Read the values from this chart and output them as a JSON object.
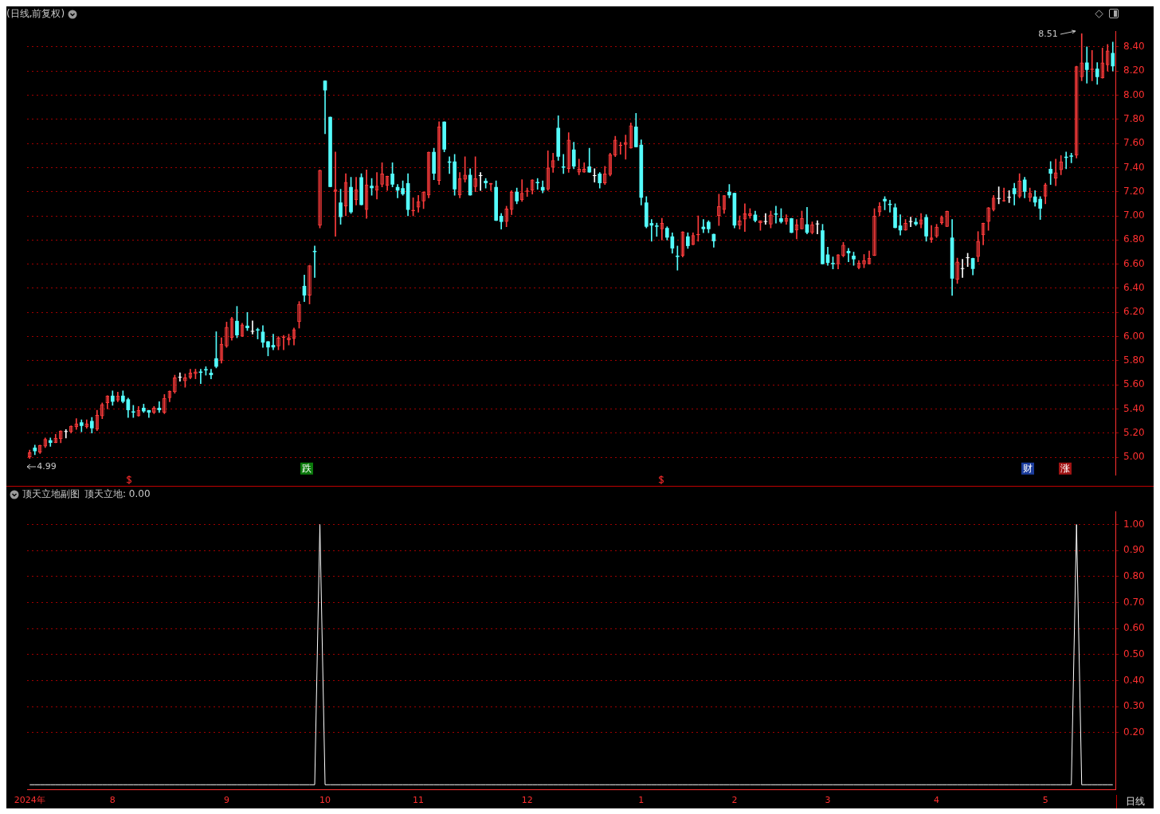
{
  "chart_data": [
    {
      "type": "candlestick",
      "title": "(日线,前复权)",
      "ohlc": [
        [
          5.0,
          5.06,
          4.99,
          5.04
        ],
        [
          5.08,
          5.1,
          5.02,
          5.05
        ],
        [
          5.04,
          5.1,
          5.03,
          5.1
        ],
        [
          5.09,
          5.16,
          5.08,
          5.15
        ],
        [
          5.14,
          5.16,
          5.09,
          5.12
        ],
        [
          5.12,
          5.19,
          5.12,
          5.16
        ],
        [
          5.15,
          5.22,
          5.12,
          5.22
        ],
        [
          5.21,
          5.23,
          5.16,
          5.21
        ],
        [
          5.21,
          5.26,
          5.2,
          5.26
        ],
        [
          5.25,
          5.32,
          5.23,
          5.28
        ],
        [
          5.29,
          5.31,
          5.21,
          5.26
        ],
        [
          5.25,
          5.31,
          5.24,
          5.28
        ],
        [
          5.3,
          5.33,
          5.2,
          5.24
        ],
        [
          5.23,
          5.39,
          5.22,
          5.35
        ],
        [
          5.34,
          5.45,
          5.32,
          5.44
        ],
        [
          5.45,
          5.51,
          5.4,
          5.51
        ],
        [
          5.51,
          5.55,
          5.43,
          5.46
        ],
        [
          5.47,
          5.54,
          5.46,
          5.51
        ],
        [
          5.51,
          5.55,
          5.45,
          5.46
        ],
        [
          5.48,
          5.49,
          5.33,
          5.39
        ],
        [
          5.38,
          5.43,
          5.33,
          5.37
        ],
        [
          5.34,
          5.42,
          5.34,
          5.39
        ],
        [
          5.41,
          5.44,
          5.37,
          5.38
        ],
        [
          5.39,
          5.39,
          5.33,
          5.37
        ],
        [
          5.37,
          5.42,
          5.36,
          5.41
        ],
        [
          5.41,
          5.46,
          5.37,
          5.39
        ],
        [
          5.37,
          5.52,
          5.36,
          5.49
        ],
        [
          5.49,
          5.55,
          5.46,
          5.55
        ],
        [
          5.54,
          5.68,
          5.53,
          5.66
        ],
        [
          5.66,
          5.7,
          5.63,
          5.66
        ],
        [
          5.63,
          5.69,
          5.58,
          5.66
        ],
        [
          5.66,
          5.73,
          5.65,
          5.7
        ],
        [
          5.69,
          5.73,
          5.65,
          5.71
        ],
        [
          5.71,
          5.73,
          5.61,
          5.7
        ],
        [
          5.73,
          5.75,
          5.68,
          5.72
        ],
        [
          5.7,
          5.73,
          5.65,
          5.68
        ],
        [
          5.82,
          6.04,
          5.74,
          5.75
        ],
        [
          5.8,
          5.99,
          5.78,
          5.94
        ],
        [
          5.92,
          6.12,
          5.91,
          6.08
        ],
        [
          5.99,
          6.16,
          5.97,
          6.15
        ],
        [
          6.13,
          6.25,
          5.99,
          6.01
        ],
        [
          6.0,
          6.11,
          6.0,
          6.1
        ],
        [
          6.09,
          6.2,
          6.05,
          6.07
        ],
        [
          6.04,
          6.13,
          6.02,
          6.04
        ],
        [
          6.06,
          6.07,
          5.98,
          6.05
        ],
        [
          6.04,
          6.09,
          5.91,
          5.95
        ],
        [
          5.96,
          5.96,
          5.84,
          5.91
        ],
        [
          5.93,
          6.02,
          5.89,
          5.91
        ],
        [
          5.92,
          6.0,
          5.89,
          5.99
        ],
        [
          5.99,
          6.01,
          5.89,
          6.0
        ],
        [
          5.97,
          6.02,
          5.93,
          5.99
        ],
        [
          5.98,
          6.07,
          5.93,
          6.06
        ],
        [
          6.12,
          6.29,
          6.07,
          6.27
        ],
        [
          6.42,
          6.51,
          6.29,
          6.34
        ],
        [
          6.34,
          6.59,
          6.27,
          6.59
        ],
        [
          6.71,
          6.75,
          6.49,
          6.7
        ],
        [
          6.92,
          7.38,
          6.9,
          7.38
        ],
        [
          8.12,
          8.12,
          7.68,
          8.04
        ],
        [
          7.82,
          7.82,
          7.24,
          7.24
        ],
        [
          7.2,
          7.53,
          6.83,
          7.22
        ],
        [
          7.11,
          7.22,
          6.93,
          6.99
        ],
        [
          7.08,
          7.35,
          7.0,
          7.28
        ],
        [
          7.24,
          7.32,
          7.02,
          7.03
        ],
        [
          7.13,
          7.32,
          7.09,
          7.22
        ],
        [
          7.32,
          7.35,
          7.09,
          7.09
        ],
        [
          7.05,
          7.38,
          6.98,
          7.26
        ],
        [
          7.25,
          7.31,
          7.17,
          7.23
        ],
        [
          7.21,
          7.36,
          7.14,
          7.25
        ],
        [
          7.26,
          7.44,
          7.24,
          7.35
        ],
        [
          7.25,
          7.33,
          7.21,
          7.33
        ],
        [
          7.35,
          7.44,
          7.24,
          7.26
        ],
        [
          7.24,
          7.26,
          7.15,
          7.21
        ],
        [
          7.23,
          7.29,
          7.17,
          7.18
        ],
        [
          7.27,
          7.35,
          7.0,
          7.05
        ],
        [
          7.04,
          7.15,
          7.0,
          7.05
        ],
        [
          7.07,
          7.17,
          7.03,
          7.12
        ],
        [
          7.12,
          7.2,
          7.06,
          7.2
        ],
        [
          7.17,
          7.53,
          7.15,
          7.53
        ],
        [
          7.53,
          7.56,
          7.3,
          7.35
        ],
        [
          7.29,
          7.78,
          7.26,
          7.74
        ],
        [
          7.78,
          7.78,
          7.53,
          7.55
        ],
        [
          7.45,
          7.49,
          7.35,
          7.44
        ],
        [
          7.45,
          7.51,
          7.17,
          7.22
        ],
        [
          7.17,
          7.36,
          7.15,
          7.31
        ],
        [
          7.3,
          7.49,
          7.28,
          7.34
        ],
        [
          7.34,
          7.39,
          7.17,
          7.17
        ],
        [
          7.24,
          7.49,
          7.2,
          7.31
        ],
        [
          7.33,
          7.36,
          7.21,
          7.33
        ],
        [
          7.29,
          7.31,
          7.23,
          7.27
        ],
        [
          7.26,
          7.27,
          7.21,
          7.27
        ],
        [
          7.24,
          7.29,
          6.96,
          6.96
        ],
        [
          7.0,
          7.02,
          6.89,
          6.95
        ],
        [
          6.95,
          7.08,
          6.91,
          7.06
        ],
        [
          7.05,
          7.21,
          7.01,
          7.2
        ],
        [
          7.2,
          7.23,
          7.1,
          7.12
        ],
        [
          7.13,
          7.3,
          7.12,
          7.19
        ],
        [
          7.2,
          7.23,
          7.16,
          7.21
        ],
        [
          7.21,
          7.3,
          7.18,
          7.3
        ],
        [
          7.28,
          7.31,
          7.22,
          7.27
        ],
        [
          7.24,
          7.29,
          7.19,
          7.21
        ],
        [
          7.22,
          7.54,
          7.21,
          7.4
        ],
        [
          7.4,
          7.52,
          7.36,
          7.46
        ],
        [
          7.73,
          7.83,
          7.46,
          7.49
        ],
        [
          7.41,
          7.51,
          7.35,
          7.4
        ],
        [
          7.39,
          7.69,
          7.36,
          7.63
        ],
        [
          7.55,
          7.61,
          7.39,
          7.41
        ],
        [
          7.36,
          7.47,
          7.34,
          7.39
        ],
        [
          7.36,
          7.44,
          7.36,
          7.39
        ],
        [
          7.41,
          7.56,
          7.36,
          7.36
        ],
        [
          7.33,
          7.39,
          7.28,
          7.33
        ],
        [
          7.35,
          7.36,
          7.23,
          7.27
        ],
        [
          7.27,
          7.41,
          7.26,
          7.35
        ],
        [
          7.34,
          7.52,
          7.33,
          7.51
        ],
        [
          7.5,
          7.66,
          7.49,
          7.63
        ],
        [
          7.58,
          7.61,
          7.51,
          7.59
        ],
        [
          7.59,
          7.67,
          7.47,
          7.61
        ],
        [
          7.56,
          7.77,
          7.56,
          7.75
        ],
        [
          7.74,
          7.85,
          7.57,
          7.57
        ],
        [
          7.59,
          7.63,
          7.09,
          7.15
        ],
        [
          7.11,
          7.16,
          6.9,
          6.91
        ],
        [
          6.94,
          6.97,
          6.79,
          6.92
        ],
        [
          6.92,
          6.94,
          6.83,
          6.91
        ],
        [
          6.89,
          6.98,
          6.8,
          6.94
        ],
        [
          6.9,
          6.91,
          6.8,
          6.82
        ],
        [
          6.83,
          6.86,
          6.69,
          6.73
        ],
        [
          6.67,
          6.75,
          6.55,
          6.66
        ],
        [
          6.67,
          6.87,
          6.66,
          6.87
        ],
        [
          6.83,
          6.86,
          6.73,
          6.75
        ],
        [
          6.76,
          6.86,
          6.76,
          6.84
        ],
        [
          6.84,
          7.0,
          6.79,
          6.85
        ],
        [
          6.91,
          6.97,
          6.86,
          6.89
        ],
        [
          6.95,
          6.96,
          6.86,
          6.89
        ],
        [
          6.85,
          6.85,
          6.74,
          6.79
        ],
        [
          7.0,
          7.18,
          6.92,
          7.08
        ],
        [
          7.05,
          7.17,
          7.02,
          7.17
        ],
        [
          7.2,
          7.26,
          7.15,
          7.17
        ],
        [
          7.19,
          7.19,
          6.9,
          6.92
        ],
        [
          6.92,
          7.0,
          6.89,
          6.96
        ],
        [
          6.97,
          7.1,
          6.87,
          7.02
        ],
        [
          7.0,
          7.06,
          6.98,
          7.02
        ],
        [
          7.01,
          7.04,
          6.95,
          6.96
        ],
        [
          6.94,
          6.96,
          6.88,
          6.96
        ],
        [
          6.95,
          7.02,
          6.93,
          6.95
        ],
        [
          6.93,
          7.04,
          6.9,
          7.01
        ],
        [
          7.02,
          7.08,
          6.94,
          7.01
        ],
        [
          6.98,
          7.06,
          6.94,
          6.95
        ],
        [
          6.95,
          7.01,
          6.93,
          6.98
        ],
        [
          6.98,
          6.98,
          6.86,
          6.86
        ],
        [
          6.88,
          6.97,
          6.81,
          6.93
        ],
        [
          6.89,
          7.04,
          6.89,
          6.98
        ],
        [
          6.93,
          7.07,
          6.85,
          6.86
        ],
        [
          6.86,
          6.95,
          6.85,
          6.93
        ],
        [
          6.93,
          6.96,
          6.85,
          6.93
        ],
        [
          6.88,
          6.93,
          6.6,
          6.6
        ],
        [
          6.68,
          6.74,
          6.59,
          6.61
        ],
        [
          6.61,
          6.66,
          6.56,
          6.6
        ],
        [
          6.6,
          6.68,
          6.56,
          6.68
        ],
        [
          6.67,
          6.78,
          6.66,
          6.76
        ],
        [
          6.71,
          6.73,
          6.62,
          6.69
        ],
        [
          6.67,
          6.7,
          6.59,
          6.64
        ],
        [
          6.57,
          6.63,
          6.56,
          6.61
        ],
        [
          6.6,
          6.68,
          6.57,
          6.63
        ],
        [
          6.6,
          6.71,
          6.6,
          6.65
        ],
        [
          6.67,
          7.06,
          6.67,
          7.0
        ],
        [
          7.03,
          7.11,
          7.0,
          7.08
        ],
        [
          7.14,
          7.16,
          7.05,
          7.12
        ],
        [
          7.1,
          7.13,
          7.03,
          7.09
        ],
        [
          7.07,
          7.1,
          6.9,
          6.9
        ],
        [
          6.92,
          7.01,
          6.84,
          6.88
        ],
        [
          6.88,
          6.97,
          6.88,
          6.94
        ],
        [
          6.95,
          6.99,
          6.91,
          6.95
        ],
        [
          6.95,
          6.98,
          6.92,
          6.93
        ],
        [
          6.93,
          7.02,
          6.9,
          6.97
        ],
        [
          6.99,
          7.01,
          6.79,
          6.83
        ],
        [
          6.8,
          6.92,
          6.78,
          6.82
        ],
        [
          6.83,
          6.93,
          6.82,
          6.91
        ],
        [
          6.94,
          7.0,
          6.93,
          6.99
        ],
        [
          6.91,
          7.04,
          6.91,
          7.04
        ],
        [
          6.82,
          6.97,
          6.34,
          6.48
        ],
        [
          6.47,
          6.65,
          6.44,
          6.62
        ],
        [
          6.56,
          6.64,
          6.49,
          6.56
        ],
        [
          6.65,
          6.69,
          6.58,
          6.65
        ],
        [
          6.65,
          6.65,
          6.51,
          6.56
        ],
        [
          6.66,
          6.87,
          6.62,
          6.79
        ],
        [
          6.84,
          6.94,
          6.76,
          6.94
        ],
        [
          6.95,
          7.07,
          6.88,
          7.07
        ],
        [
          7.05,
          7.17,
          7.04,
          7.15
        ],
        [
          7.14,
          7.24,
          7.1,
          7.14
        ],
        [
          7.12,
          7.23,
          7.12,
          7.13
        ],
        [
          7.15,
          7.21,
          7.11,
          7.15
        ],
        [
          7.23,
          7.27,
          7.09,
          7.18
        ],
        [
          7.16,
          7.35,
          7.15,
          7.29
        ],
        [
          7.3,
          7.32,
          7.15,
          7.2
        ],
        [
          7.15,
          7.23,
          7.12,
          7.19
        ],
        [
          7.16,
          7.21,
          7.08,
          7.11
        ],
        [
          7.14,
          7.16,
          6.97,
          7.06
        ],
        [
          7.16,
          7.27,
          7.1,
          7.26
        ],
        [
          7.39,
          7.45,
          7.26,
          7.35
        ],
        [
          7.31,
          7.47,
          7.25,
          7.36
        ],
        [
          7.38,
          7.5,
          7.34,
          7.45
        ],
        [
          7.49,
          7.53,
          7.39,
          7.48
        ],
        [
          7.5,
          7.52,
          7.44,
          7.49
        ],
        [
          7.5,
          8.24,
          7.48,
          8.24
        ],
        [
          8.15,
          8.51,
          8.12,
          8.27
        ],
        [
          8.27,
          8.4,
          8.1,
          8.21
        ],
        [
          8.21,
          8.37,
          8.12,
          8.22
        ],
        [
          8.22,
          8.27,
          8.09,
          8.15
        ],
        [
          8.14,
          8.39,
          8.14,
          8.27
        ],
        [
          8.25,
          8.42,
          8.2,
          8.37
        ],
        [
          8.35,
          8.44,
          8.2,
          8.24
        ]
      ],
      "ylim": [
        4.85,
        8.53
      ],
      "yticks": [
        {
          "value": 5,
          "label": "5.00"
        },
        {
          "value": 5.2,
          "label": "5.20"
        },
        {
          "value": 5.4,
          "label": "5.40"
        },
        {
          "value": 5.6,
          "label": "5.60"
        },
        {
          "value": 5.8,
          "label": "5.80"
        },
        {
          "value": 6,
          "label": "6.00"
        },
        {
          "value": 6.2,
          "label": "6.20"
        },
        {
          "value": 6.4,
          "label": "6.40"
        },
        {
          "value": 6.6,
          "label": "6.60"
        },
        {
          "value": 6.8,
          "label": "6.80"
        },
        {
          "value": 7,
          "label": "7.00"
        },
        {
          "value": 7.2,
          "label": "7.20"
        },
        {
          "value": 7.4,
          "label": "7.40"
        },
        {
          "value": 7.6,
          "label": "7.60"
        },
        {
          "value": 7.8,
          "label": "7.80"
        },
        {
          "value": 8,
          "label": "8.00"
        },
        {
          "value": 8.2,
          "label": "8.20"
        },
        {
          "value": 8.4,
          "label": "8.40"
        }
      ],
      "grid": "y",
      "tick_labels": "y",
      "annotations": [
        "8.51",
        "4.99",
        "跌",
        "财",
        "涨"
      ]
    },
    {
      "type": "line",
      "title": "顶天立地副图",
      "subtitle": "顶天立地: 0.00",
      "categories": [
        "2024年",
        null,
        null,
        null,
        null,
        null,
        null,
        null,
        null,
        null,
        null,
        null,
        null,
        null,
        null,
        null,
        "8",
        null,
        null,
        null,
        null,
        null,
        null,
        null,
        null,
        null,
        null,
        null,
        null,
        null,
        null,
        null,
        null,
        null,
        null,
        null,
        null,
        null,
        "9",
        null,
        null,
        null,
        null,
        null,
        null,
        null,
        null,
        null,
        null,
        null,
        null,
        null,
        null,
        null,
        null,
        null,
        null,
        "10",
        null,
        null,
        null,
        null,
        null,
        null,
        null,
        null,
        null,
        null,
        null,
        null,
        null,
        null,
        null,
        null,
        null,
        "11",
        null,
        null,
        null,
        null,
        null,
        null,
        null,
        null,
        null,
        null,
        null,
        null,
        null,
        null,
        null,
        null,
        null,
        null,
        null,
        null,
        "12",
        null,
        null,
        null,
        null,
        null,
        null,
        null,
        null,
        null,
        null,
        null,
        null,
        null,
        null,
        null,
        null,
        null,
        null,
        null,
        null,
        null,
        "1",
        null,
        null,
        null,
        null,
        null,
        null,
        null,
        null,
        null,
        null,
        null,
        null,
        null,
        null,
        null,
        null,
        null,
        "2",
        null,
        null,
        null,
        null,
        null,
        null,
        null,
        null,
        null,
        null,
        null,
        null,
        null,
        null,
        null,
        null,
        null,
        "3",
        null,
        null,
        null,
        null,
        null,
        null,
        null,
        null,
        null,
        null,
        null,
        null,
        null,
        null,
        null,
        null,
        null,
        null,
        null,
        null,
        "4",
        null,
        null,
        null,
        null,
        null,
        null,
        null,
        null,
        null,
        null,
        null,
        null,
        null,
        null,
        null,
        null,
        null,
        null,
        null,
        null,
        "5",
        null,
        null,
        null,
        null,
        null,
        null,
        null,
        null,
        null,
        null,
        null,
        null,
        null
      ],
      "series": [
        {
          "color": "#ffffff",
          "values": [
            0,
            0,
            0,
            0,
            0,
            0,
            0,
            0,
            0,
            0,
            0,
            0,
            0,
            0,
            0,
            0,
            0,
            0,
            0,
            0,
            0,
            0,
            0,
            0,
            0,
            0,
            0,
            0,
            0,
            0,
            0,
            0,
            0,
            0,
            0,
            0,
            0,
            0,
            0,
            0,
            0,
            0,
            0,
            0,
            0,
            0,
            0,
            0,
            0,
            0,
            0,
            0,
            0,
            0,
            0,
            0,
            1,
            0,
            0,
            0,
            0,
            0,
            0,
            0,
            0,
            0,
            0,
            0,
            0,
            0,
            0,
            0,
            0,
            0,
            0,
            0,
            0,
            0,
            0,
            0,
            0,
            0,
            0,
            0,
            0,
            0,
            0,
            0,
            0,
            0,
            0,
            0,
            0,
            0,
            0,
            0,
            0,
            0,
            0,
            0,
            0,
            0,
            0,
            0,
            0,
            0,
            0,
            0,
            0,
            0,
            0,
            0,
            0,
            0,
            0,
            0,
            0,
            0,
            0,
            0,
            0,
            0,
            0,
            0,
            0,
            0,
            0,
            0,
            0,
            0,
            0,
            0,
            0,
            0,
            0,
            0,
            0,
            0,
            0,
            0,
            0,
            0,
            0,
            0,
            0,
            0,
            0,
            0,
            0,
            0,
            0,
            0,
            0,
            0,
            0,
            0,
            0,
            0,
            0,
            0,
            0,
            0,
            0,
            0,
            0,
            0,
            0,
            0,
            0,
            0,
            0,
            0,
            0,
            0,
            0,
            0,
            0,
            0,
            0,
            0,
            0,
            0,
            0,
            0,
            0,
            0,
            0,
            0,
            0,
            0,
            0,
            0,
            0,
            0,
            0,
            0,
            0,
            0,
            0,
            0,
            0,
            0,
            1,
            0,
            0,
            0,
            0,
            0,
            0,
            0
          ]
        }
      ],
      "ylim": [
        -0.02,
        1.05
      ],
      "yticks": [
        {
          "value": 0.2,
          "label": "0.20"
        },
        {
          "value": 0.3,
          "label": "0.30"
        },
        {
          "value": 0.4,
          "label": "0.40"
        },
        {
          "value": 0.5,
          "label": "0.50"
        },
        {
          "value": 0.6,
          "label": "0.60"
        },
        {
          "value": 0.7,
          "label": "0.70"
        },
        {
          "value": 0.8,
          "label": "0.80"
        },
        {
          "value": 0.9,
          "label": "0.90"
        },
        {
          "value": 1,
          "label": "1.00"
        }
      ],
      "grid": "y",
      "annotations": [
        "日线"
      ]
    }
  ]
}
